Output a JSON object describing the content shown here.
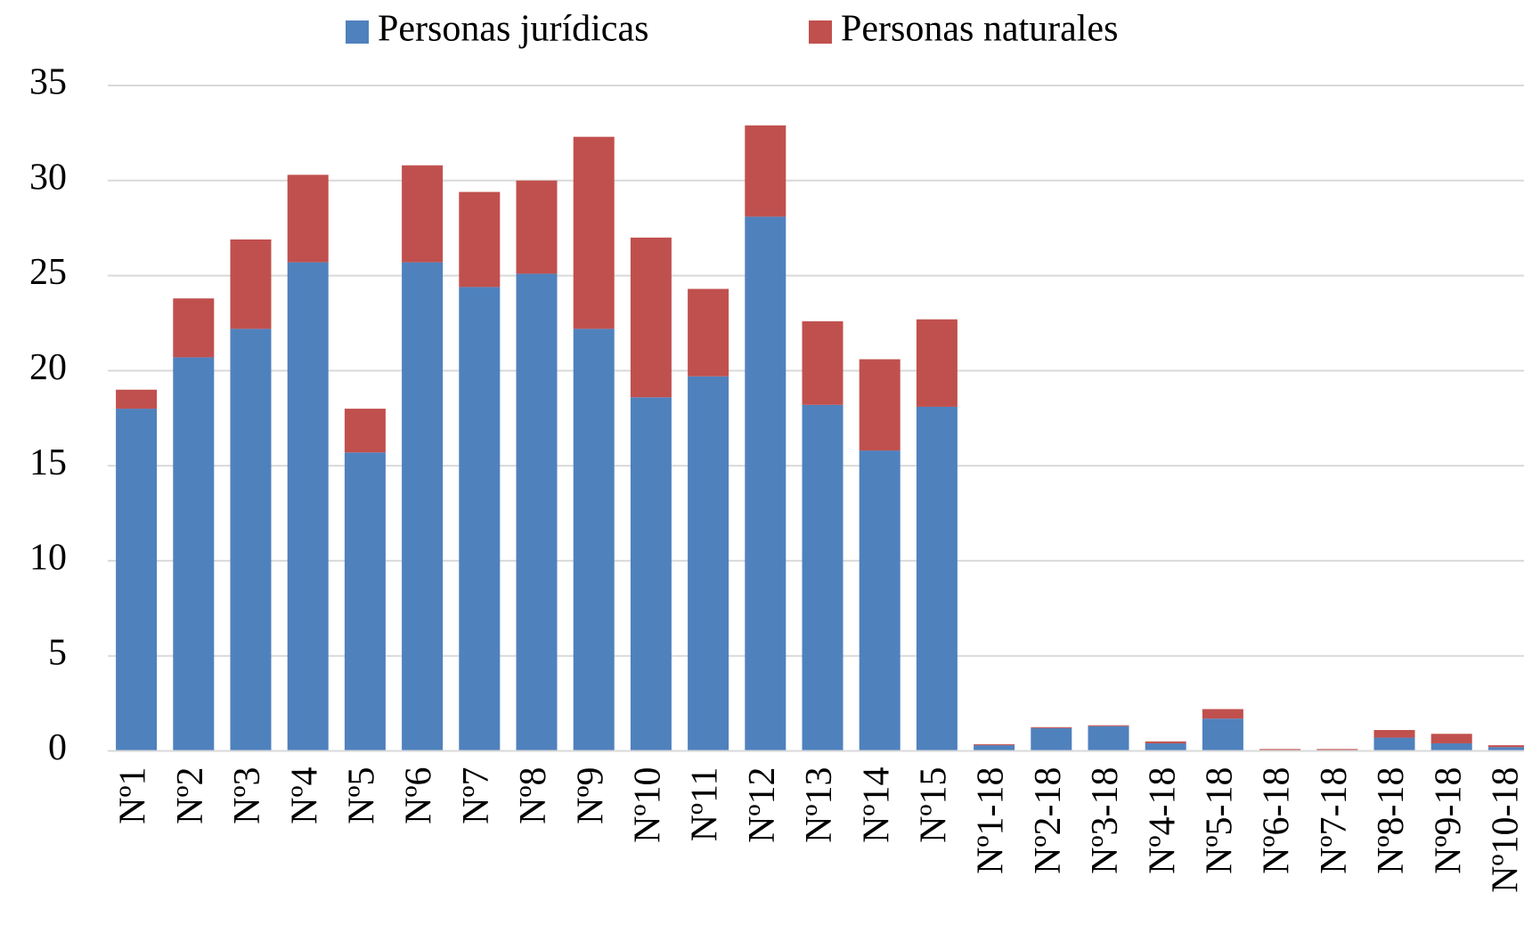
{
  "chart_data": {
    "type": "stacked_bar",
    "categories": [
      "Nº1",
      "Nº2",
      "Nº3",
      "Nº4",
      "Nº5",
      "Nº6",
      "Nº7",
      "Nº8",
      "Nº9",
      "Nº10",
      "Nº11",
      "Nº12",
      "Nº13",
      "Nº14",
      "Nº15",
      "Nº1-18",
      "Nº2-18",
      "Nº3-18",
      "Nº4-18",
      "Nº5-18",
      "Nº6-18",
      "Nº7-18",
      "Nº8-18",
      "Nº9-18",
      "Nº10-18"
    ],
    "series": [
      {
        "name": "Personas jurídicas",
        "color": "#4f81bd",
        "values": [
          18.0,
          20.7,
          22.2,
          25.7,
          15.7,
          25.7,
          24.4,
          25.1,
          22.2,
          18.6,
          19.7,
          28.1,
          18.2,
          15.8,
          18.1,
          0.3,
          1.2,
          1.3,
          0.4,
          1.7,
          0.05,
          0.05,
          0.7,
          0.4,
          0.2
        ]
      },
      {
        "name": "Personas naturales",
        "color": "#c0504d",
        "values": [
          1.0,
          3.1,
          4.7,
          4.6,
          2.3,
          5.1,
          5.0,
          4.9,
          10.1,
          8.4,
          4.6,
          4.8,
          4.4,
          4.8,
          4.6,
          0.05,
          0.05,
          0.05,
          0.1,
          0.5,
          0.05,
          0.05,
          0.4,
          0.5,
          0.1
        ]
      }
    ],
    "ylim": [
      0,
      35
    ],
    "yticks": [
      0,
      5,
      10,
      15,
      20,
      25,
      30,
      35
    ],
    "grid": true,
    "legend": "top"
  }
}
